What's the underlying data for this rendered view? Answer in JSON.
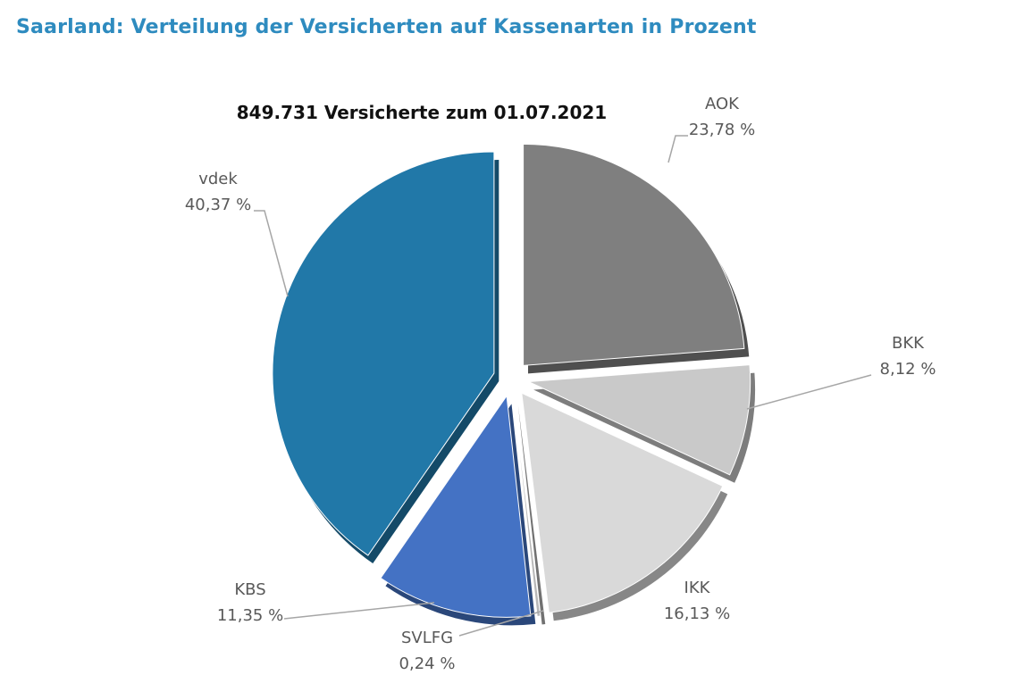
{
  "title": "Saarland: Verteilung der Versicherten auf Kassenarten in Prozent",
  "colors": {
    "title": "#2e8bbf",
    "AOK": "#7f7f7f",
    "BKK": "#c9c9c9",
    "IKK": "#d9d9d9",
    "SVLFG": "#b7b7b7",
    "KBS": "#4472c4",
    "vdek": "#2178a8"
  },
  "chart_data": {
    "type": "pie",
    "title": "849.731 Versicherte zum 01.07.2021",
    "unit": "%",
    "slices": [
      {
        "name": "AOK",
        "value": 23.78,
        "label": "23,78 %"
      },
      {
        "name": "BKK",
        "value": 8.12,
        "label": "8,12 %"
      },
      {
        "name": "IKK",
        "value": 16.13,
        "label": "16,13 %"
      },
      {
        "name": "SVLFG",
        "value": 0.24,
        "label": "0,24 %"
      },
      {
        "name": "KBS",
        "value": 11.35,
        "label": "11,35 %"
      },
      {
        "name": "vdek",
        "value": 40.37,
        "label": "40,37 %"
      }
    ],
    "legend": "none",
    "style": "exploded-3d"
  }
}
